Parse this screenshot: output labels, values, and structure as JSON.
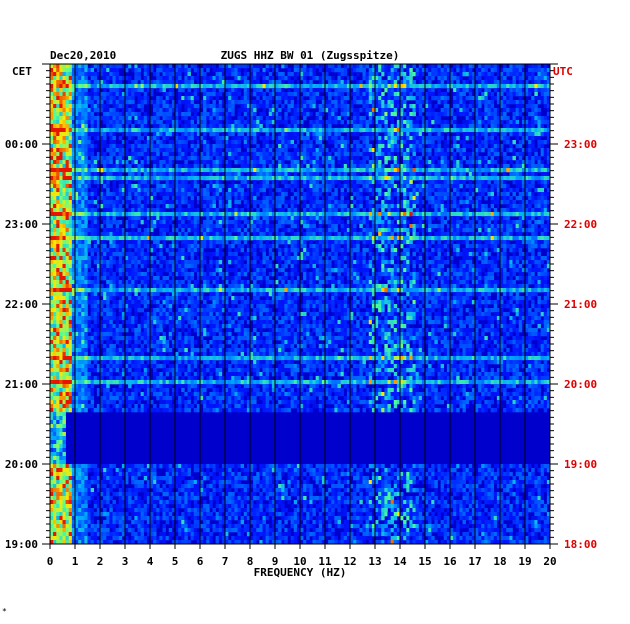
{
  "chart_data": {
    "type": "heatmap",
    "date": "Dec20,2010",
    "title": "ZUGS HHZ BW 01 (Zugsspitze)",
    "left_tz": "CET",
    "right_tz": "UTC",
    "xlabel": "FREQUENCY (HZ)",
    "xlim": [
      0,
      20
    ],
    "x_ticks": [
      "0",
      "1",
      "2",
      "3",
      "4",
      "5",
      "6",
      "7",
      "8",
      "9",
      "10",
      "11",
      "12",
      "13",
      "14",
      "15",
      "16",
      "17",
      "18",
      "19",
      "20"
    ],
    "cet_ticks": [
      "19:00",
      "20:00",
      "21:00",
      "22:00",
      "23:00",
      "00:00"
    ],
    "utc_ticks": [
      "18:00",
      "19:00",
      "20:00",
      "21:00",
      "22:00",
      "23:00"
    ],
    "time_range_utc_hours": [
      18,
      24
    ],
    "colors": {
      "background": "#0000cc",
      "grid": "#000000",
      "utc_text": "#dd0000",
      "cet_text": "#000000",
      "low": "#0000aa",
      "mid": "#00aaff",
      "high": "#ff2200"
    },
    "features": [
      {
        "label": "strong low-frequency energy",
        "freq_hz": [
          0.2,
          0.8
        ]
      },
      {
        "label": "quiet period",
        "utc": [
          "19:00",
          "19:40"
        ]
      },
      {
        "label": "spectral lines",
        "freq_hz": [
          12.8,
          14.6
        ]
      }
    ]
  },
  "corner_mark": "*"
}
